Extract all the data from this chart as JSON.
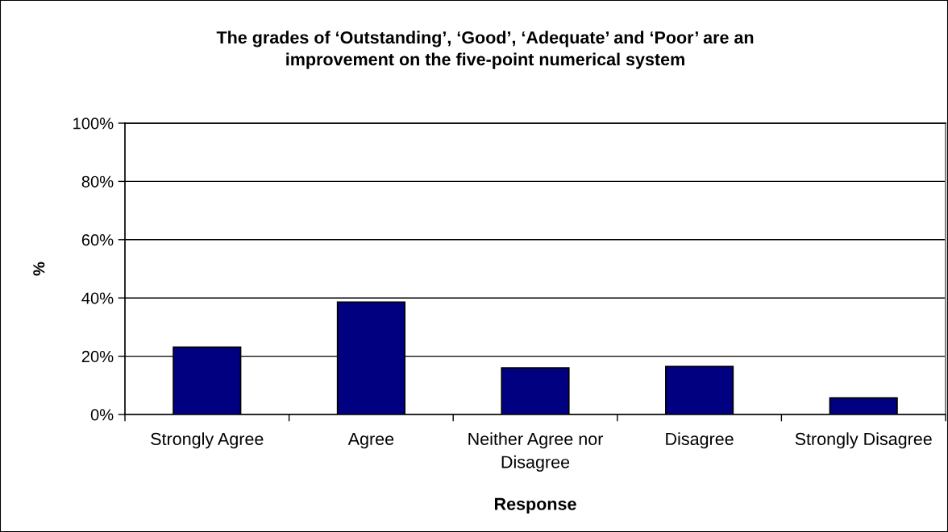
{
  "chart_data": {
    "type": "bar",
    "title": "The grades of ‘Outstanding’, ‘Good’, ‘Adequate’ and ‘Poor’ are an improvement on the five-point numerical system",
    "xlabel": "Response",
    "ylabel": "%",
    "categories": [
      "Strongly Agree",
      "Agree",
      "Neither Agree nor Disagree",
      "Disagree",
      "Strongly Disagree"
    ],
    "values": [
      23.1,
      38.6,
      16.0,
      16.5,
      5.7
    ],
    "color": "#000080",
    "ylim": [
      0,
      100
    ],
    "yticks": [
      {
        "value": 0,
        "label": "0%"
      },
      {
        "value": 20,
        "label": "20%"
      },
      {
        "value": 40,
        "label": "40%"
      },
      {
        "value": 60,
        "label": "60%"
      },
      {
        "value": 80,
        "label": "80%"
      },
      {
        "value": 100,
        "label": "100%"
      }
    ],
    "grid": "y"
  }
}
